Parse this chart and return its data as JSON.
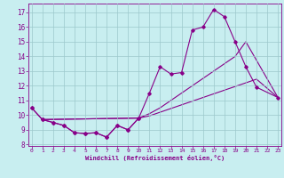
{
  "bg_color": "#c8eef0",
  "grid_color": "#9cc8cc",
  "line_color": "#880088",
  "xlabel": "Windchill (Refroidissement éolien,°C)",
  "ylim": [
    7.9,
    17.6
  ],
  "xlim": [
    -0.3,
    23.3
  ],
  "yticks": [
    8,
    9,
    10,
    11,
    12,
    13,
    14,
    15,
    16,
    17
  ],
  "xticks": [
    0,
    1,
    2,
    3,
    4,
    5,
    6,
    7,
    8,
    9,
    10,
    11,
    12,
    13,
    14,
    15,
    16,
    17,
    18,
    19,
    20,
    21,
    22,
    23
  ],
  "curve_zigzag_x": [
    0,
    1,
    2,
    3,
    4,
    5,
    6,
    7,
    8,
    9,
    10
  ],
  "curve_zigzag_y": [
    10.5,
    9.7,
    9.5,
    9.3,
    8.8,
    8.75,
    8.8,
    8.5,
    9.3,
    9.0,
    9.8
  ],
  "curve_main_x": [
    0,
    1,
    2,
    3,
    4,
    5,
    6,
    7,
    8,
    9,
    10,
    11,
    12,
    13,
    14,
    15,
    16,
    17,
    18,
    19,
    20,
    21,
    23
  ],
  "curve_main_y": [
    10.5,
    9.7,
    9.5,
    9.3,
    8.8,
    8.75,
    8.8,
    8.5,
    9.3,
    9.0,
    9.8,
    11.5,
    13.3,
    12.8,
    12.9,
    15.8,
    16.0,
    17.2,
    16.7,
    15.0,
    13.3,
    11.9,
    11.2
  ],
  "line_upper_x": [
    1,
    10,
    11,
    12,
    13,
    14,
    15,
    16,
    17,
    18,
    19,
    20,
    23
  ],
  "line_upper_y": [
    9.7,
    9.8,
    10.1,
    10.5,
    11.0,
    11.5,
    12.0,
    12.5,
    13.0,
    13.5,
    14.0,
    15.0,
    11.2
  ],
  "line_lower_x": [
    1,
    10,
    11,
    12,
    13,
    14,
    15,
    16,
    17,
    18,
    19,
    20,
    21,
    23
  ],
  "line_lower_y": [
    9.7,
    9.8,
    9.95,
    10.2,
    10.45,
    10.7,
    10.95,
    11.2,
    11.45,
    11.7,
    11.95,
    12.2,
    12.45,
    11.2
  ]
}
